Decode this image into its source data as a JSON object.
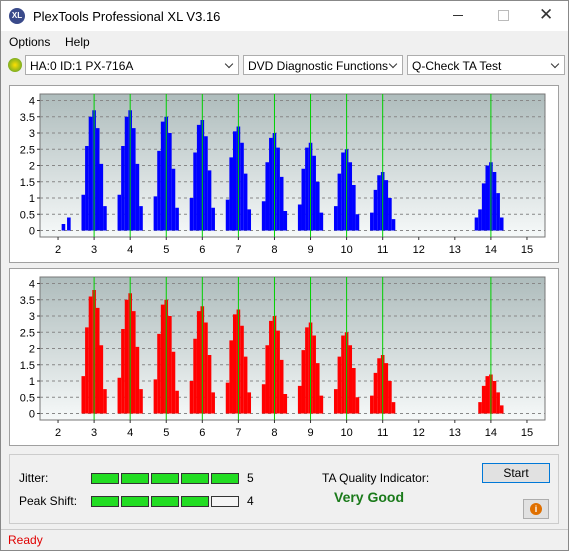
{
  "window": {
    "title": "PlexTools Professional XL V3.16"
  },
  "menu": [
    "Options",
    "Help"
  ],
  "toolbar": {
    "drive": "HA:0 ID:1  PX-716A",
    "function": "DVD Diagnostic Functions",
    "test": "Q-Check TA Test"
  },
  "chart_data": [
    {
      "type": "bar",
      "color": "#0000ff",
      "marker_color": "#00d000",
      "grid": true,
      "x": [
        2.15,
        2.3,
        2.7,
        2.8,
        2.9,
        3,
        3.1,
        3.2,
        3.3,
        3.7,
        3.8,
        3.9,
        4,
        4.1,
        4.2,
        4.3,
        4.7,
        4.8,
        4.9,
        5,
        5.1,
        5.2,
        5.3,
        5.7,
        5.8,
        5.9,
        6,
        6.1,
        6.2,
        6.3,
        6.7,
        6.8,
        6.9,
        7,
        7.1,
        7.2,
        7.3,
        7.7,
        7.8,
        7.9,
        8,
        8.1,
        8.2,
        8.3,
        8.7,
        8.8,
        8.9,
        9,
        9.1,
        9.2,
        9.3,
        9.7,
        9.8,
        9.9,
        10,
        10.1,
        10.2,
        10.3,
        10.7,
        10.8,
        10.9,
        11,
        11.1,
        11.2,
        11.3,
        13.6,
        13.7,
        13.8,
        13.9,
        14,
        14.1,
        14.2,
        14.3
      ],
      "values": [
        0.2,
        0.4,
        1.1,
        2.6,
        3.5,
        3.7,
        3.15,
        2.05,
        0.75,
        1.1,
        2.6,
        3.5,
        3.7,
        3.15,
        2.05,
        0.75,
        1.05,
        2.45,
        3.35,
        3.5,
        3,
        1.9,
        0.7,
        1,
        2.4,
        3.25,
        3.4,
        2.9,
        1.85,
        0.7,
        0.95,
        2.25,
        3.05,
        3.2,
        2.7,
        1.75,
        0.65,
        0.9,
        2.1,
        2.85,
        3,
        2.55,
        1.65,
        0.6,
        0.8,
        1.9,
        2.55,
        2.7,
        2.3,
        1.5,
        0.55,
        0.75,
        1.75,
        2.4,
        2.5,
        2.1,
        1.4,
        0.5,
        0.55,
        1.25,
        1.7,
        1.8,
        1.55,
        1,
        0.35,
        0.4,
        0.65,
        1.45,
        2,
        2.1,
        1.8,
        1.15,
        0.4
      ],
      "xlim": [
        1.5,
        15.5
      ],
      "xticks": [
        2,
        3,
        4,
        5,
        6,
        7,
        8,
        9,
        10,
        11,
        12,
        13,
        14,
        15
      ],
      "ylim": [
        -0.2,
        4.2
      ],
      "yticks": [
        0,
        0.5,
        1,
        1.5,
        2,
        2.5,
        3,
        3.5,
        4
      ],
      "marker_lines": [
        3,
        4,
        5,
        6,
        7,
        8,
        9,
        10,
        11,
        14
      ]
    },
    {
      "type": "bar",
      "color": "#ff0000",
      "marker_color": "#00d000",
      "grid": true,
      "x": [
        2.7,
        2.8,
        2.9,
        3,
        3.1,
        3.2,
        3.3,
        3.7,
        3.8,
        3.9,
        4,
        4.1,
        4.2,
        4.3,
        4.7,
        4.8,
        4.9,
        5,
        5.1,
        5.2,
        5.3,
        5.7,
        5.8,
        5.9,
        6,
        6.1,
        6.2,
        6.3,
        6.7,
        6.8,
        6.9,
        7,
        7.1,
        7.2,
        7.3,
        7.7,
        7.8,
        7.9,
        8,
        8.1,
        8.2,
        8.3,
        8.7,
        8.8,
        8.9,
        9,
        9.1,
        9.2,
        9.3,
        9.7,
        9.8,
        9.9,
        10,
        10.1,
        10.2,
        10.3,
        10.7,
        10.8,
        10.9,
        11,
        11.1,
        11.2,
        11.3,
        13.7,
        13.8,
        13.9,
        14,
        14.1,
        14.2,
        14.3
      ],
      "values": [
        1.15,
        2.65,
        3.6,
        3.8,
        3.25,
        2.1,
        0.75,
        1.1,
        2.6,
        3.5,
        3.7,
        3.15,
        2.05,
        0.75,
        1.05,
        2.45,
        3.35,
        3.5,
        3,
        1.9,
        0.7,
        1,
        2.3,
        3.15,
        3.3,
        2.8,
        1.8,
        0.65,
        0.95,
        2.25,
        3.05,
        3.2,
        2.7,
        1.75,
        0.65,
        0.9,
        2.1,
        2.85,
        3,
        2.55,
        1.65,
        0.6,
        0.85,
        1.95,
        2.65,
        2.8,
        2.4,
        1.55,
        0.55,
        0.75,
        1.75,
        2.4,
        2.5,
        2.1,
        1.4,
        0.5,
        0.55,
        1.25,
        1.7,
        1.8,
        1.55,
        1,
        0.35,
        0.35,
        0.85,
        1.15,
        1.2,
        1,
        0.65,
        0.25
      ],
      "xlim": [
        1.5,
        15.5
      ],
      "xticks": [
        2,
        3,
        4,
        5,
        6,
        7,
        8,
        9,
        10,
        11,
        12,
        13,
        14,
        15
      ],
      "ylim": [
        -0.2,
        4.2
      ],
      "yticks": [
        0,
        0.5,
        1,
        1.5,
        2,
        2.5,
        3,
        3.5,
        4
      ],
      "marker_lines": [
        3,
        4,
        5,
        6,
        7,
        8,
        9,
        10,
        11,
        14
      ]
    }
  ],
  "metrics": [
    {
      "label": "Jitter:",
      "value": 5
    },
    {
      "label": "Peak Shift:",
      "value": 4
    }
  ],
  "ta": {
    "label": "TA Quality Indicator:",
    "result": "Very Good"
  },
  "start": "Start",
  "status": "Ready"
}
